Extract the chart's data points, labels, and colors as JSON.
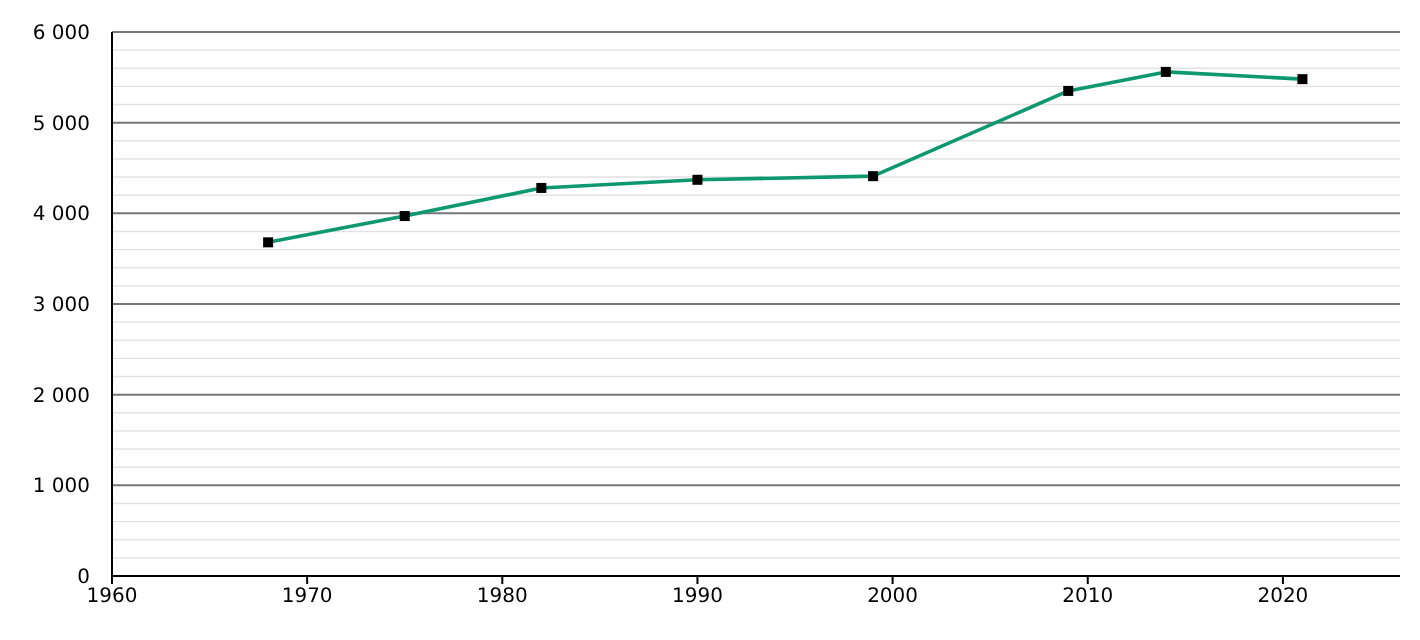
{
  "chart_data": {
    "type": "line",
    "x": [
      1968,
      1975,
      1982,
      1990,
      1999,
      2009,
      2014,
      2021
    ],
    "series": [
      {
        "color": "#0e9870",
        "values": [
          3680,
          3970,
          4280,
          4370,
          4410,
          5350,
          5560,
          5480
        ]
      }
    ],
    "xlim": [
      1960,
      2026
    ],
    "xticks": [
      1960,
      1970,
      1980,
      1990,
      2000,
      2010,
      2020
    ],
    "ylim": [
      0,
      6000
    ],
    "yticks": [
      {
        "value": 0,
        "label": "0"
      },
      {
        "value": 200,
        "label": null
      },
      {
        "value": 400,
        "label": null
      },
      {
        "value": 600,
        "label": null
      },
      {
        "value": 800,
        "label": null
      },
      {
        "value": 1000,
        "label": "1 000"
      },
      {
        "value": 1200,
        "label": null
      },
      {
        "value": 1400,
        "label": null
      },
      {
        "value": 1600,
        "label": null
      },
      {
        "value": 1800,
        "label": null
      },
      {
        "value": 2000,
        "label": "2 000"
      },
      {
        "value": 2200,
        "label": null
      },
      {
        "value": 2400,
        "label": null
      },
      {
        "value": 2600,
        "label": null
      },
      {
        "value": 2800,
        "label": null
      },
      {
        "value": 3000,
        "label": "3 000"
      },
      {
        "value": 3200,
        "label": null
      },
      {
        "value": 3400,
        "label": null
      },
      {
        "value": 3600,
        "label": null
      },
      {
        "value": 3800,
        "label": null
      },
      {
        "value": 4000,
        "label": "4 000"
      },
      {
        "value": 4200,
        "label": null
      },
      {
        "value": 4400,
        "label": null
      },
      {
        "value": 4600,
        "label": null
      },
      {
        "value": 4800,
        "label": null
      },
      {
        "value": 5000,
        "label": "5 000"
      },
      {
        "value": 5200,
        "label": null
      },
      {
        "value": 5400,
        "label": null
      },
      {
        "value": 5600,
        "label": null
      },
      {
        "value": 5800,
        "label": null
      },
      {
        "value": 6000,
        "label": "6 000"
      }
    ],
    "grid": "y",
    "marker": "square",
    "line_style": "solid"
  }
}
